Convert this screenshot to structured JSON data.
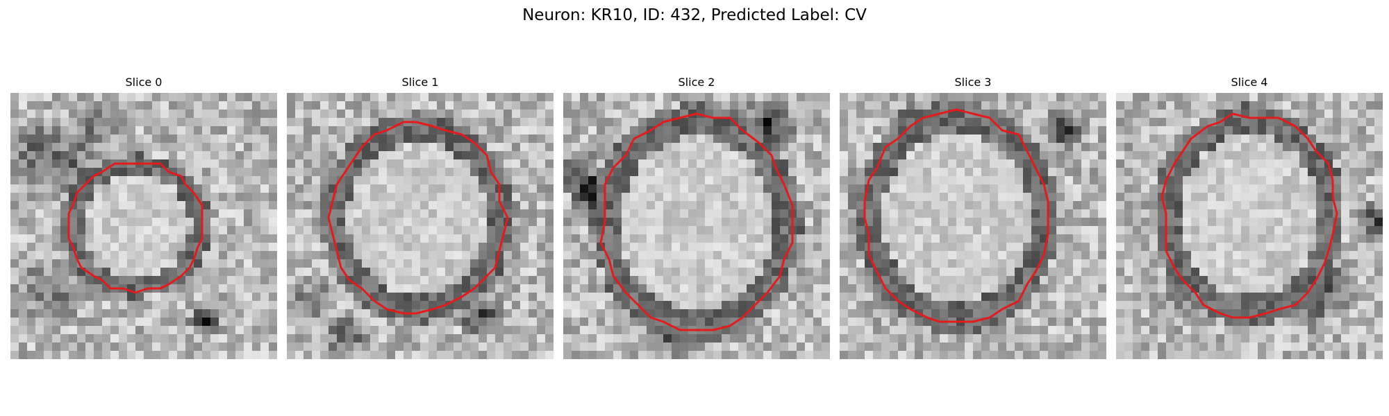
{
  "figure": {
    "title": "Neuron: KR10, ID: 432, Predicted Label: CV"
  },
  "colors": {
    "contour": "#e41a1c",
    "background": "#ffffff"
  },
  "panels": [
    {
      "title": "Slice 0",
      "seed": 11
    },
    {
      "title": "Slice 1",
      "seed": 23
    },
    {
      "title": "Slice 2",
      "seed": 37
    },
    {
      "title": "Slice 3",
      "seed": 53
    },
    {
      "title": "Slice 4",
      "seed": 71
    }
  ]
}
